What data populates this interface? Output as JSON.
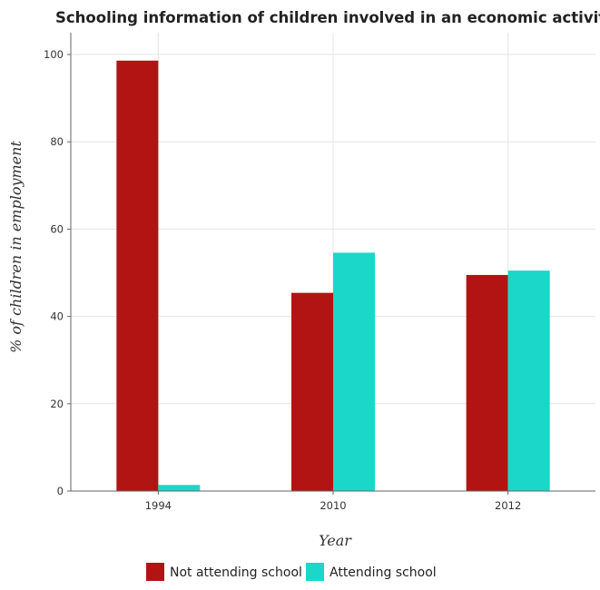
{
  "chart_data": {
    "type": "bar",
    "title": "Schooling information of children involved in an economic activity in G",
    "xlabel": "Year",
    "ylabel": "% of children in employment",
    "categories": [
      "1994",
      "2010",
      "2012"
    ],
    "series": [
      {
        "name": "Not attending school",
        "values": [
          98.6,
          45.4,
          49.5
        ],
        "color": "#b21414"
      },
      {
        "name": "Attending school",
        "values": [
          1.4,
          54.6,
          50.5
        ],
        "color": "#1ad7c9"
      }
    ],
    "ylim": [
      0,
      105
    ],
    "yticks": [
      0,
      20,
      40,
      60,
      80,
      100
    ],
    "grid": true,
    "legend_position": "bottom"
  }
}
